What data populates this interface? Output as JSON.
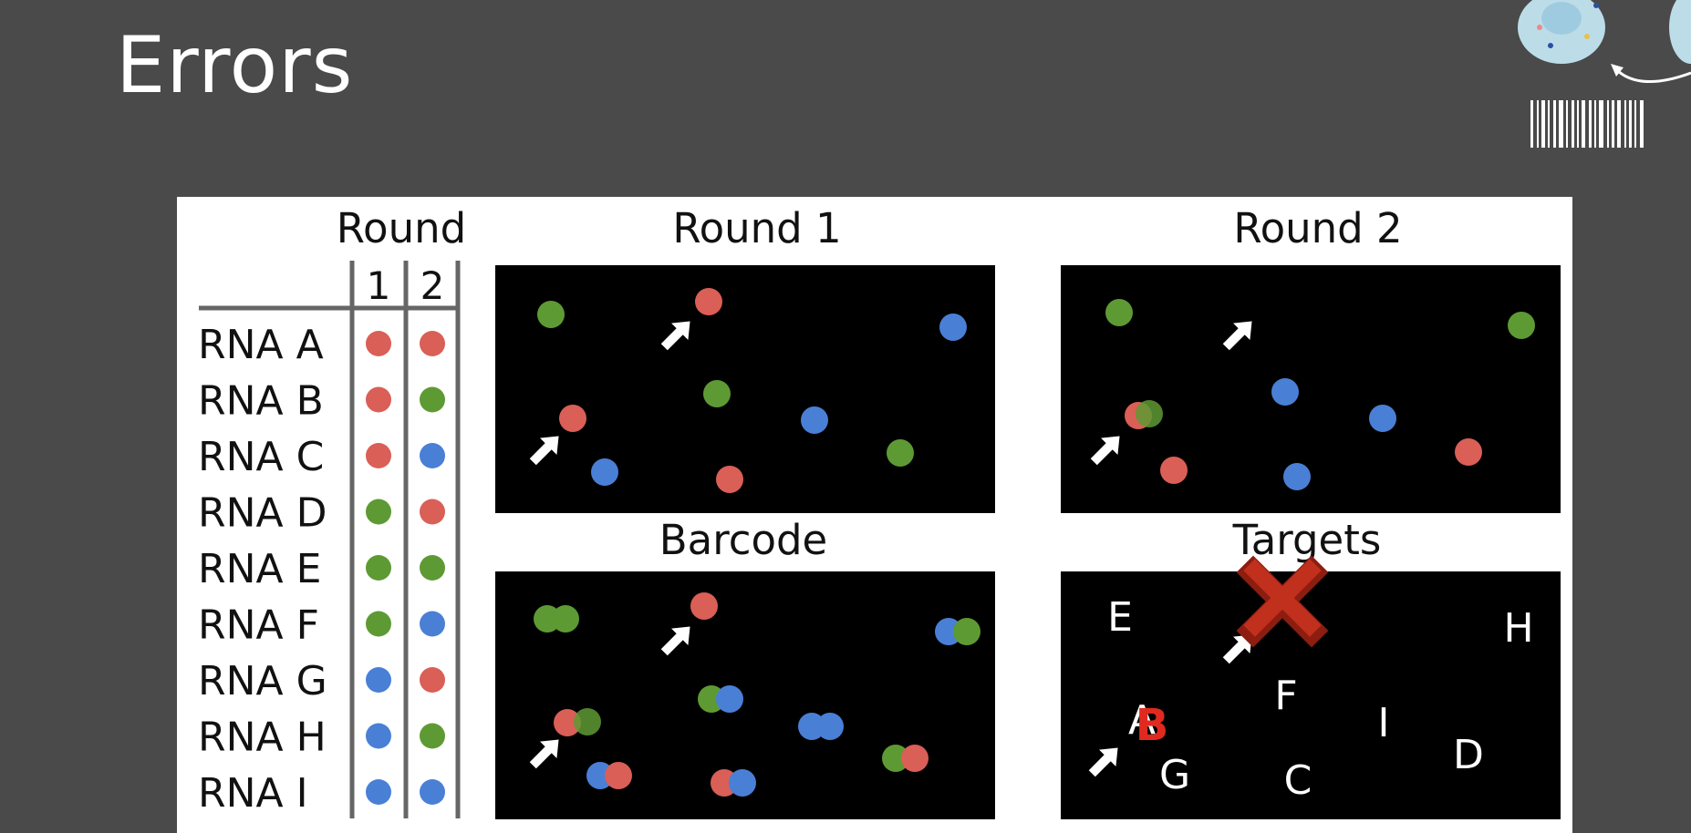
{
  "slide": {
    "title": "Errors"
  },
  "colors": {
    "background": "#4a4a4a",
    "red": "#d95f57",
    "green": "#5e9a34",
    "blue": "#4a7fd6",
    "panel": "#000000",
    "figure_bg": "#ffffff",
    "cross": "#b62a1b"
  },
  "table": {
    "header": "Round",
    "round_labels": [
      "1",
      "2"
    ],
    "rows": [
      {
        "label": "RNA A",
        "round1": "red",
        "round2": "red"
      },
      {
        "label": "RNA B",
        "round1": "red",
        "round2": "green"
      },
      {
        "label": "RNA C",
        "round1": "red",
        "round2": "blue"
      },
      {
        "label": "RNA D",
        "round1": "green",
        "round2": "red"
      },
      {
        "label": "RNA E",
        "round1": "green",
        "round2": "green"
      },
      {
        "label": "RNA F",
        "round1": "green",
        "round2": "blue"
      },
      {
        "label": "RNA G",
        "round1": "blue",
        "round2": "red"
      },
      {
        "label": "RNA H",
        "round1": "blue",
        "round2": "green"
      },
      {
        "label": "RNA I",
        "round1": "blue",
        "round2": "blue"
      }
    ]
  },
  "panels": {
    "round1": {
      "title": "Round 1"
    },
    "round2": {
      "title": "Round 2"
    },
    "barcode": {
      "title": "Barcode"
    },
    "targets": {
      "title": "Targets",
      "letters": [
        "E",
        "H",
        "F",
        "A",
        "B",
        "I",
        "D",
        "G",
        "C"
      ]
    }
  }
}
